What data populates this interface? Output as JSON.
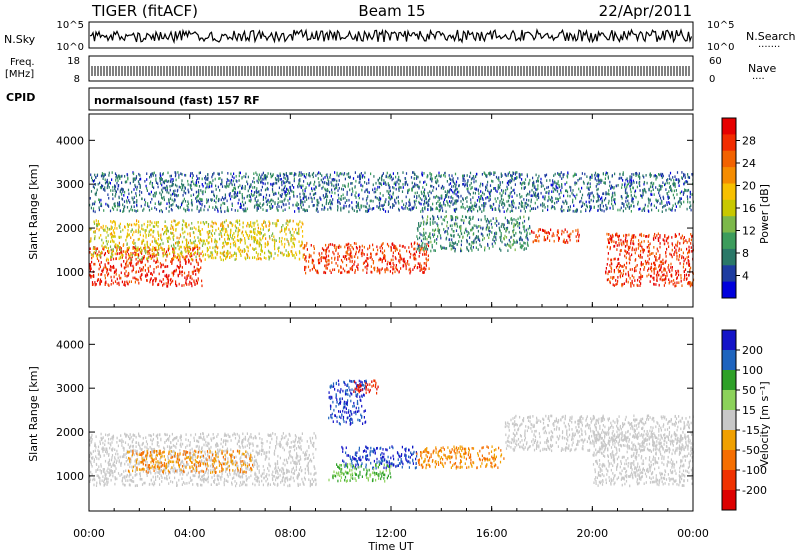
{
  "header": {
    "radar": "TIGER (fitACF)",
    "beam": "Beam 15",
    "date": "22/Apr/2011"
  },
  "noise_panel": {
    "left_label": "N.Sky",
    "right_label": "N.Search",
    "right_legend": "·······",
    "ticks_left": [
      "10^5",
      "10^0"
    ],
    "ticks_right": [
      "10^5",
      "10^0"
    ]
  },
  "freq_panel": {
    "left_label_1": "Freq.",
    "left_label_2": "[MHz]",
    "right_label": "Nave",
    "right_legend": "····",
    "ticks_left": [
      "18",
      "8"
    ],
    "ticks_right": [
      "60",
      "0"
    ]
  },
  "cpid_panel": {
    "left_label": "CPID",
    "text": "normalsound (fast) 157 RF"
  },
  "power_colorbar": {
    "label": "Power [dB]",
    "ticks": [
      "28",
      "24",
      "20",
      "16",
      "12",
      "8",
      "4"
    ],
    "colors": [
      "#e60000",
      "#f22c00",
      "#f26200",
      "#f58c00",
      "#f7c000",
      "#c8c800",
      "#7cb84a",
      "#3c9c5c",
      "#2a7868",
      "#1e3ca0",
      "#0000dc"
    ]
  },
  "velocity_colorbar": {
    "label": "Velocity [m s⁻¹]",
    "ticks": [
      "200",
      "100",
      "50",
      "15",
      "-15",
      "-50",
      "-100",
      "-200"
    ],
    "colors": [
      "#1414c8",
      "#1e64be",
      "#2ea028",
      "#8cd25a",
      "#c8c8c8",
      "#f0a000",
      "#f56e00",
      "#f03200",
      "#dc0000"
    ]
  },
  "chart_data": [
    {
      "type": "heatmap",
      "ylabel": "Slant Range [km]",
      "yticks": [
        1000,
        2000,
        3000,
        4000
      ],
      "ylim": [
        200,
        4600
      ],
      "xticks": [
        "00:00",
        "04:00",
        "08:00",
        "12:00",
        "16:00",
        "20:00",
        "00:00"
      ],
      "xlim": [
        0,
        24
      ],
      "colorbar": "Power [dB]",
      "regions": [
        {
          "x": [
            0.0,
            4.5
          ],
          "y": [
            700,
            1600
          ],
          "value": 27
        },
        {
          "x": [
            0.0,
            8.5
          ],
          "y": [
            1300,
            2200
          ],
          "value": 16
        },
        {
          "x": [
            8.5,
            13.5
          ],
          "y": [
            1000,
            1700
          ],
          "value": 26
        },
        {
          "x": [
            13.0,
            17.5
          ],
          "y": [
            1500,
            2300
          ],
          "value": 8
        },
        {
          "x": [
            17.5,
            19.5
          ],
          "y": [
            1700,
            2000
          ],
          "value": 26
        },
        {
          "x": [
            20.5,
            24.0
          ],
          "y": [
            700,
            1900
          ],
          "value": 26
        },
        {
          "x": [
            0.0,
            24.0
          ],
          "y": [
            2400,
            3300
          ],
          "value": 6
        }
      ]
    },
    {
      "type": "heatmap",
      "ylabel": "Slant Range [km]",
      "yticks": [
        1000,
        2000,
        3000,
        4000
      ],
      "ylim": [
        200,
        4600
      ],
      "xticks": [
        "00:00",
        "04:00",
        "08:00",
        "12:00",
        "16:00",
        "20:00",
        "00:00"
      ],
      "xlim": [
        0,
        24
      ],
      "xlabel": "Time UT",
      "colorbar": "Velocity [m s⁻¹]",
      "regions": [
        {
          "x": [
            0.0,
            9.0
          ],
          "y": [
            800,
            2000
          ],
          "value": 0
        },
        {
          "x": [
            1.5,
            6.5
          ],
          "y": [
            1100,
            1600
          ],
          "value": -50
        },
        {
          "x": [
            9.5,
            11.0
          ],
          "y": [
            2200,
            3200
          ],
          "value": 200
        },
        {
          "x": [
            10.0,
            13.0
          ],
          "y": [
            1200,
            1700
          ],
          "value": 200
        },
        {
          "x": [
            9.5,
            12.0
          ],
          "y": [
            900,
            1300
          ],
          "value": 50
        },
        {
          "x": [
            13.0,
            16.5
          ],
          "y": [
            1200,
            1700
          ],
          "value": -50
        },
        {
          "x": [
            16.5,
            24.0
          ],
          "y": [
            1600,
            2400
          ],
          "value": 0
        },
        {
          "x": [
            20.0,
            24.0
          ],
          "y": [
            800,
            2000
          ],
          "value": 0
        },
        {
          "x": [
            10.5,
            11.5
          ],
          "y": [
            2900,
            3200
          ],
          "value": -200
        }
      ]
    }
  ]
}
